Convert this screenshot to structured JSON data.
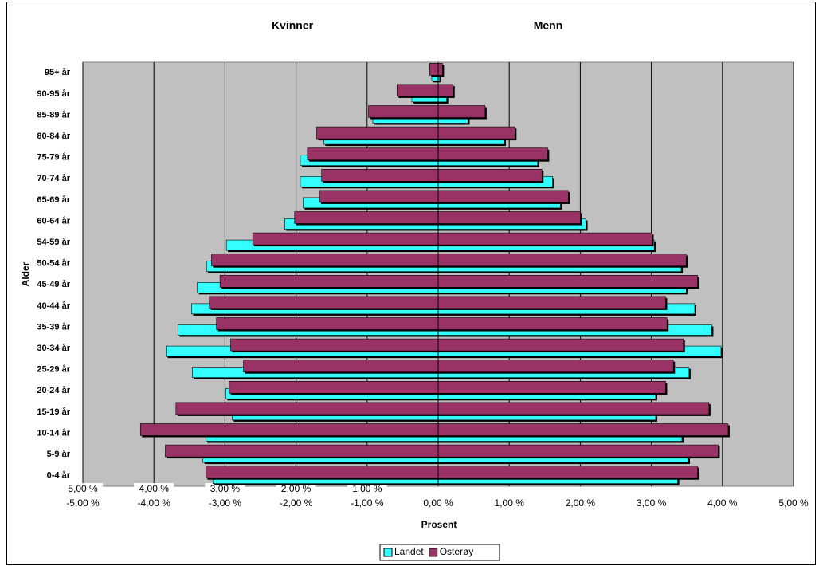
{
  "chart_data": {
    "type": "pyramid",
    "left_title": "Kvinner",
    "right_title": "Menn",
    "ylabel": "Alder",
    "xlabel": "Prosent",
    "categories": [
      "0-4 år",
      "5-9 år",
      "10-14 år",
      "15-19 år",
      "20-24 år",
      "25-29 år",
      "30-34 år",
      "35-39 år",
      "40-44 år",
      "45-49 år",
      "50-54 år",
      "54-59 år",
      "60-64 år",
      "65-69 år",
      "70-74 år",
      "75-79 år",
      "80-84 år",
      "85-89 år",
      "90-95 år",
      "95+ år"
    ],
    "series": [
      {
        "name": "Landet",
        "color": "#33ffff",
        "left_values": [
          -3.17,
          -3.31,
          -3.27,
          -2.9,
          -2.99,
          -3.46,
          -3.83,
          -3.66,
          -3.47,
          -3.39,
          -3.26,
          -2.98,
          -2.16,
          -1.9,
          -1.94,
          -1.94,
          -1.61,
          -0.92,
          -0.37,
          -0.09
        ],
        "right_values": [
          3.37,
          3.52,
          3.43,
          3.06,
          3.06,
          3.53,
          3.98,
          3.85,
          3.61,
          3.49,
          3.42,
          3.04,
          2.08,
          1.72,
          1.61,
          1.4,
          0.93,
          0.42,
          0.12,
          0.02
        ]
      },
      {
        "name": "Osterøy",
        "color": "#993366",
        "left_values": [
          -3.27,
          -3.84,
          -4.19,
          -3.69,
          -2.94,
          -2.74,
          -2.92,
          -3.12,
          -3.22,
          -3.07,
          -3.19,
          -2.61,
          -2.02,
          -1.67,
          -1.64,
          -1.84,
          -1.71,
          -0.98,
          -0.58,
          -0.12
        ],
        "right_values": [
          3.65,
          3.94,
          4.08,
          3.81,
          3.2,
          3.31,
          3.45,
          3.22,
          3.2,
          3.65,
          3.49,
          3.01,
          2.0,
          1.83,
          1.46,
          1.54,
          1.08,
          0.66,
          0.21,
          0.06
        ]
      }
    ],
    "xlim": [
      -5,
      5
    ],
    "xticks": [
      {
        "value": -5,
        "label": "5,00 %"
      },
      {
        "value": -4,
        "label": "4,00 %"
      },
      {
        "value": -3,
        "label": "3,00 %"
      },
      {
        "value": -2,
        "label": "2,00 %"
      },
      {
        "value": -1,
        "label": "1,00 %"
      },
      {
        "value": 0,
        "label": "0,00 %"
      },
      {
        "value": 1,
        "label": "1,00 %"
      },
      {
        "value": 2,
        "label": "2,00 %"
      },
      {
        "value": 3,
        "label": "3,00 %"
      },
      {
        "value": 4,
        "label": "4,00 %"
      },
      {
        "value": 5,
        "label": "5,00 %"
      }
    ],
    "xtick_hidden_labels": [
      "-5,00 %",
      "-4,00 %",
      "-3,00 %",
      "-2,00 %",
      "-1,00 %"
    ],
    "grid": true,
    "plot_background": "#c0c0c0",
    "legend": "bottom"
  }
}
